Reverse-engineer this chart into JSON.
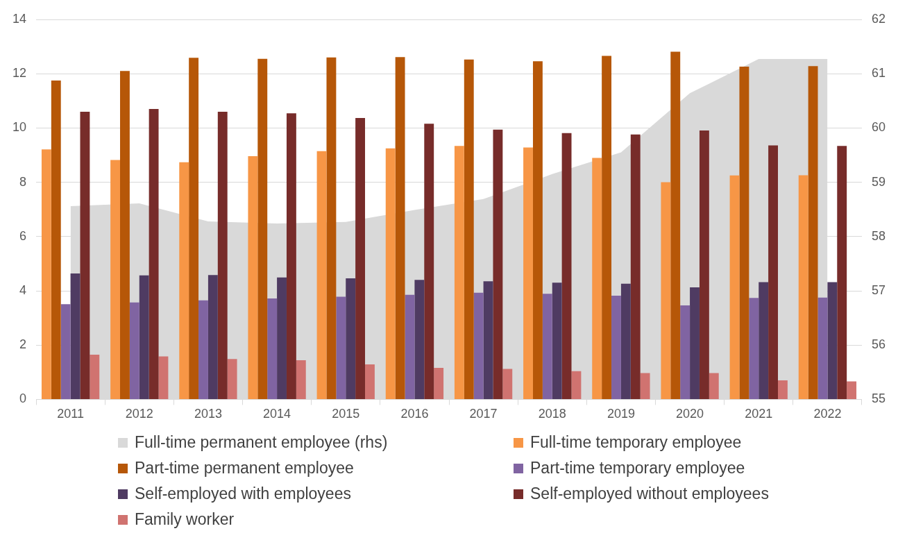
{
  "chart_data": {
    "type": "bar",
    "categories": [
      "2011",
      "2012",
      "2013",
      "2014",
      "2015",
      "2016",
      "2017",
      "2018",
      "2019",
      "2020",
      "2021",
      "2022"
    ],
    "series": [
      {
        "name": "Full-time permanent employee  (rhs)",
        "type": "area",
        "axis": "y2",
        "color": "#d9d9d9",
        "values": [
          58.56,
          58.61,
          58.28,
          58.24,
          58.27,
          58.49,
          58.69,
          59.15,
          59.55,
          60.64,
          61.27,
          61.27
        ]
      },
      {
        "name": "Full-time temporary employee",
        "color": "#f79646",
        "values": [
          9.21,
          8.82,
          8.74,
          8.96,
          9.15,
          9.25,
          9.34,
          9.28,
          8.9,
          8.0,
          8.25,
          8.26
        ]
      },
      {
        "name": "Part-time permanent employee",
        "color": "#b65708",
        "values": [
          11.75,
          12.1,
          12.59,
          12.55,
          12.6,
          12.61,
          12.52,
          12.46,
          12.66,
          12.81,
          12.26,
          12.28
        ]
      },
      {
        "name": "Part-time temporary employee",
        "color": "#8064a2",
        "values": [
          3.51,
          3.57,
          3.65,
          3.72,
          3.78,
          3.85,
          3.93,
          3.89,
          3.82,
          3.46,
          3.74,
          3.75
        ]
      },
      {
        "name": "Self-employed with employees",
        "color": "#4f3b62",
        "values": [
          4.64,
          4.57,
          4.58,
          4.49,
          4.46,
          4.4,
          4.35,
          4.3,
          4.26,
          4.13,
          4.32,
          4.32
        ]
      },
      {
        "name": "Self-employed without employees",
        "color": "#772c2a",
        "values": [
          10.6,
          10.7,
          10.6,
          10.54,
          10.37,
          10.16,
          9.94,
          9.81,
          9.76,
          9.91,
          9.36,
          9.34
        ]
      },
      {
        "name": "Family worker",
        "color": "#d07370",
        "values": [
          1.65,
          1.58,
          1.49,
          1.44,
          1.29,
          1.16,
          1.12,
          1.04,
          0.97,
          0.97,
          0.7,
          0.66
        ]
      }
    ],
    "ylim": [
      0,
      14
    ],
    "yticks": [
      0,
      2,
      4,
      6,
      8,
      10,
      12,
      14
    ],
    "y2lim": [
      55,
      62
    ],
    "y2ticks": [
      55,
      56,
      57,
      58,
      59,
      60,
      61,
      62
    ],
    "grid": "y",
    "legend": "bottom"
  }
}
